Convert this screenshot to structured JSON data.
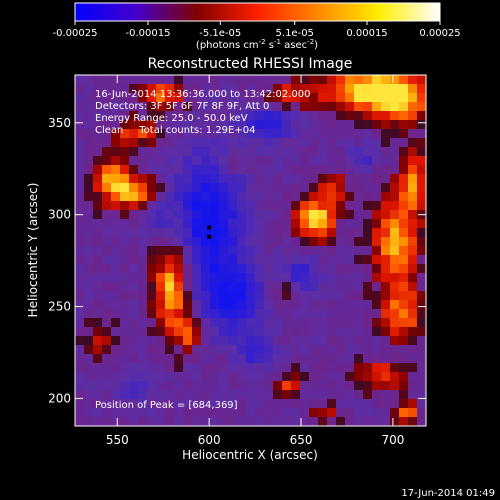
{
  "chart_data": {
    "type": "heatmap",
    "title": "Reconstructed RHESSI Image",
    "xlabel": "Heliocentric X (arcsec)",
    "ylabel": "Heliocentric Y (arcsec)",
    "xlim": [
      527,
      718
    ],
    "ylim": [
      185,
      376
    ],
    "x_ticks": [
      550,
      600,
      650,
      700
    ],
    "y_ticks": [
      200,
      250,
      300,
      350
    ],
    "colorbar": {
      "range": [
        -0.00025,
        0.00025
      ],
      "tick_values": [
        -0.00025,
        -0.00015,
        -5.1e-05,
        5.1e-05,
        0.00015,
        0.00025
      ],
      "tick_labels": [
        "-0.00025",
        "-0.00015",
        "-5.1e-05",
        "5.1e-05",
        "0.00015",
        "0.00025"
      ],
      "units_prefix": "(photons cm",
      "units_exp1": "-2",
      "units_mid": " s",
      "units_exp2": "-1",
      "units_mid2": " asec",
      "units_exp3": "-2",
      "units_suffix": ")",
      "colors": [
        "#0000ff",
        "#4400cc",
        "#800000",
        "#ff2000",
        "#ff8800",
        "#ffee00",
        "#ffffff"
      ]
    },
    "annotations": [
      "16-Jun-2014 13:36:36.000 to 13:42:02.000",
      "Detectors: 3F 5F 6F 7F 8F 9F, Att 0",
      "Energy Range: 25.0 - 50.0 keV",
      "Clean     Total counts: 1.29E+04"
    ],
    "peak_label": "Position of Peak = [684,369]",
    "peak_xy": [
      684,
      369
    ],
    "background_color": "#5a2ea8",
    "blobs": [
      {
        "x": 685,
        "y": 368,
        "sx": 18,
        "sy": 8,
        "v": 1.0
      },
      {
        "x": 705,
        "y": 362,
        "sx": 10,
        "sy": 10,
        "v": 0.8
      },
      {
        "x": 575,
        "y": 365,
        "sx": 8,
        "sy": 5,
        "v": 0.7
      },
      {
        "x": 560,
        "y": 345,
        "sx": 9,
        "sy": 5,
        "v": 0.6
      },
      {
        "x": 643,
        "y": 365,
        "sx": 9,
        "sy": 5,
        "v": 0.5
      },
      {
        "x": 548,
        "y": 318,
        "sx": 8,
        "sy": 9,
        "v": 0.85
      },
      {
        "x": 562,
        "y": 312,
        "sx": 8,
        "sy": 6,
        "v": 0.65
      },
      {
        "x": 580,
        "y": 260,
        "sx": 7,
        "sy": 18,
        "v": 0.95
      },
      {
        "x": 590,
        "y": 235,
        "sx": 5,
        "sy": 6,
        "v": 0.6
      },
      {
        "x": 658,
        "y": 298,
        "sx": 8,
        "sy": 9,
        "v": 0.95
      },
      {
        "x": 668,
        "y": 315,
        "sx": 5,
        "sy": 5,
        "v": 0.55
      },
      {
        "x": 702,
        "y": 285,
        "sx": 9,
        "sy": 20,
        "v": 0.85
      },
      {
        "x": 712,
        "y": 320,
        "sx": 5,
        "sy": 12,
        "v": 0.7
      },
      {
        "x": 705,
        "y": 245,
        "sx": 8,
        "sy": 10,
        "v": 0.65
      },
      {
        "x": 693,
        "y": 212,
        "sx": 9,
        "sy": 6,
        "v": 0.6
      },
      {
        "x": 707,
        "y": 192,
        "sx": 5,
        "sy": 4,
        "v": 0.8
      },
      {
        "x": 643,
        "y": 207,
        "sx": 5,
        "sy": 5,
        "v": 0.5
      },
      {
        "x": 663,
        "y": 192,
        "sx": 5,
        "sy": 4,
        "v": 0.45
      },
      {
        "x": 540,
        "y": 232,
        "sx": 6,
        "sy": 8,
        "v": 0.4
      },
      {
        "x": 612,
        "y": 328,
        "sx": 5,
        "sy": 4,
        "v": 0.35
      },
      {
        "x": 640,
        "y": 260,
        "sx": 5,
        "sy": 5,
        "v": 0.3
      },
      {
        "x": 600,
        "y": 298,
        "sx": 13,
        "sy": 24,
        "v": -0.9
      },
      {
        "x": 612,
        "y": 255,
        "sx": 12,
        "sy": 14,
        "v": -0.75
      },
      {
        "x": 632,
        "y": 350,
        "sx": 10,
        "sy": 7,
        "v": -0.6
      },
      {
        "x": 650,
        "y": 268,
        "sx": 7,
        "sy": 7,
        "v": -0.55
      },
      {
        "x": 625,
        "y": 225,
        "sx": 7,
        "sy": 6,
        "v": -0.45
      },
      {
        "x": 572,
        "y": 300,
        "sx": 6,
        "sy": 6,
        "v": -0.35
      },
      {
        "x": 685,
        "y": 330,
        "sx": 6,
        "sy": 6,
        "v": -0.35
      },
      {
        "x": 560,
        "y": 205,
        "sx": 7,
        "sy": 5,
        "v": -0.3
      }
    ],
    "markers": [
      [
        600,
        293
      ],
      [
        600,
        288
      ]
    ]
  },
  "footer": {
    "timestamp": "17-Jun-2014 01:49"
  }
}
